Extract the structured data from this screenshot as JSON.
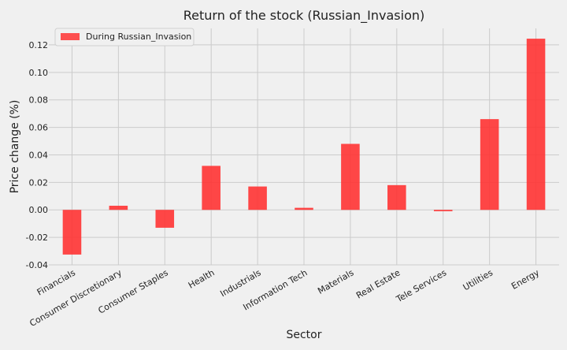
{
  "chart_data": {
    "type": "bar",
    "title": "Return of the stock (Russian_Invasion)",
    "xlabel": "Sector",
    "ylabel": "Price change (%)",
    "categories": [
      "Financials",
      "Consumer Discretionary",
      "Consumer Staples",
      "Health",
      "Industrials",
      "Information Tech",
      "Materials",
      "Real Estate",
      "Tele Services",
      "Utilities",
      "Energy"
    ],
    "series": [
      {
        "name": "During Russian_Invasion",
        "color": "#ff3333",
        "values": [
          -0.0325,
          0.003,
          -0.013,
          0.032,
          0.017,
          0.0015,
          0.048,
          0.018,
          -0.001,
          0.066,
          0.1245
        ]
      }
    ],
    "ylim": [
      -0.04,
      0.132
    ],
    "yticks": [
      "-0.04",
      "-0.02",
      "0.00",
      "0.02",
      "0.04",
      "0.06",
      "0.08",
      "0.10",
      "0.12"
    ],
    "grid": true,
    "legend_position": "top-left"
  }
}
